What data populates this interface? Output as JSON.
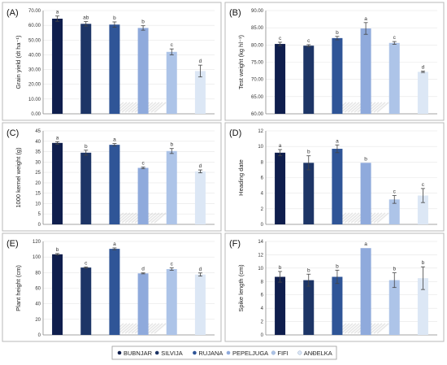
{
  "colors": [
    "#0f1e4d",
    "#1d3566",
    "#2f5597",
    "#8faadc",
    "#adc4e8",
    "#dce7f5"
  ],
  "legend": [
    "BUBNJAR",
    "SILVIJA",
    "RUJANA",
    "PEPELJUGA",
    "FIFI",
    "ANĐELKA"
  ],
  "chart_data": [
    {
      "type": "bar",
      "panel": "(A)",
      "ylabel": "Grain yield (dt ha⁻¹)",
      "categories": [
        "BUBNJAR",
        "SILVIJA",
        "RUJANA",
        "PEPELJUGA",
        "FIFI",
        "ANĐELKA"
      ],
      "values": [
        64.5,
        61.0,
        60.5,
        58.2,
        42.0,
        29.0
      ],
      "errors": [
        1.8,
        1.5,
        1.8,
        1.5,
        2.0,
        4.0
      ],
      "letters": [
        "a",
        "ab",
        "b",
        "b",
        "c",
        "d"
      ],
      "ylim": [
        0,
        70
      ],
      "yticks": [
        "0.00",
        "10.00",
        "20.00",
        "30.00",
        "40.00",
        "50.00",
        "60.00",
        "70.00"
      ]
    },
    {
      "type": "bar",
      "panel": "(B)",
      "ylabel": "Test weight (kg hl⁻¹)",
      "categories": [
        "BUBNJAR",
        "SILVIJA",
        "RUJANA",
        "PEPELJUGA",
        "FIFI",
        "ANĐELKA"
      ],
      "values": [
        80.3,
        79.8,
        82.0,
        84.8,
        80.6,
        72.2
      ],
      "errors": [
        0.5,
        0.3,
        0.5,
        1.7,
        0.4,
        0.2
      ],
      "letters": [
        "c",
        "c",
        "b",
        "a",
        "c",
        "d"
      ],
      "ylim": [
        60,
        90
      ],
      "yticks": [
        "60.00",
        "65.00",
        "70.00",
        "75.00",
        "80.00",
        "85.00",
        "90.00"
      ]
    },
    {
      "type": "bar",
      "panel": "(C)",
      "ylabel": "1000 kernel weight (g)",
      "categories": [
        "BUBNJAR",
        "SILVIJA",
        "RUJANA",
        "PEPELJUGA",
        "FIFI",
        "ANĐELKA"
      ],
      "values": [
        39.2,
        34.5,
        38.3,
        27.2,
        35.3,
        25.5
      ],
      "errors": [
        0.6,
        1.2,
        0.6,
        0.4,
        1.2,
        0.7
      ],
      "letters": [
        "a",
        "b",
        "a",
        "c",
        "b",
        "d"
      ],
      "ylim": [
        0,
        45
      ],
      "yticks": [
        "0",
        "5",
        "10",
        "15",
        "20",
        "25",
        "30",
        "35",
        "40",
        "45"
      ]
    },
    {
      "type": "bar",
      "panel": "(D)",
      "ylabel": "Heading date",
      "categories": [
        "BUBNJAR",
        "SILVIJA",
        "RUJANA",
        "PEPELJUGA",
        "FIFI",
        "ANĐELKA"
      ],
      "values": [
        9.2,
        7.9,
        9.7,
        7.9,
        3.2,
        3.7
      ],
      "errors": [
        0.4,
        0.9,
        0.5,
        0.0,
        0.5,
        0.9
      ],
      "letters": [
        "a",
        "b",
        "a",
        "b",
        "c",
        "c"
      ],
      "ylim": [
        0,
        12
      ],
      "yticks": [
        "0",
        "2",
        "4",
        "6",
        "8",
        "10",
        "12"
      ]
    },
    {
      "type": "bar",
      "panel": "(E)",
      "ylabel": "Plant height (cm)",
      "categories": [
        "BUBNJAR",
        "SILVIJA",
        "RUJANA",
        "PEPELJUGA",
        "FIFI",
        "ANĐELKA"
      ],
      "values": [
        103.5,
        86.5,
        110.5,
        79.0,
        84.5,
        77.5
      ],
      "errors": [
        1.0,
        0.8,
        1.2,
        0.6,
        1.5,
        2.0
      ],
      "letters": [
        "b",
        "c",
        "a",
        "d",
        "c",
        "d"
      ],
      "ylim": [
        0,
        120
      ],
      "yticks": [
        "0",
        "20",
        "40",
        "60",
        "80",
        "100",
        "120"
      ]
    },
    {
      "type": "bar",
      "panel": "(F)",
      "ylabel": "Spike length (cm)",
      "categories": [
        "BUBNJAR",
        "SILVIJA",
        "RUJANA",
        "PEPELJUGA",
        "FIFI",
        "ANĐELKA"
      ],
      "values": [
        8.7,
        8.2,
        8.7,
        13.0,
        8.2,
        8.5
      ],
      "errors": [
        0.8,
        0.9,
        1.0,
        0.0,
        1.1,
        1.7
      ],
      "letters": [
        "b",
        "b",
        "b",
        "a",
        "b",
        "b"
      ],
      "ylim": [
        0,
        14
      ],
      "yticks": [
        "0",
        "2",
        "4",
        "6",
        "8",
        "10",
        "12",
        "14"
      ]
    }
  ]
}
